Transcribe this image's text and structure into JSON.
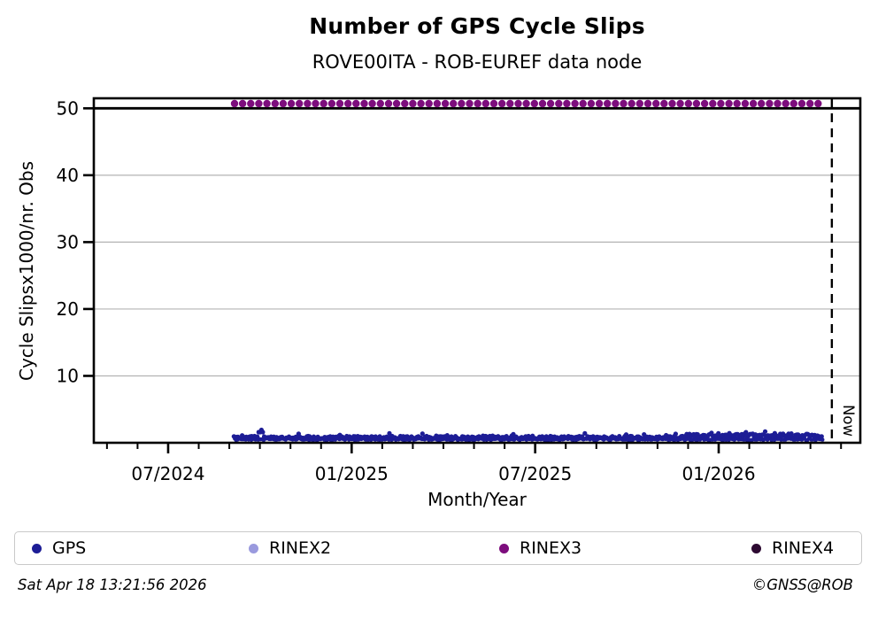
{
  "chart_data": {
    "type": "scatter",
    "title": "Number of GPS Cycle Slips",
    "subtitle": "ROVE00ITA - ROB-EUREF data node",
    "xlabel": "Month/Year",
    "ylabel": "Cycle Slipsx1000/nr. Obs",
    "x_axis": {
      "unit": "months relative to 2024-07",
      "domain": [
        -2.43,
        22.63
      ],
      "major_ticks": [
        {
          "m": 0,
          "label": "07/2024"
        },
        {
          "m": 6,
          "label": "01/2025"
        },
        {
          "m": 12,
          "label": "07/2025"
        },
        {
          "m": 18,
          "label": "01/2026"
        }
      ],
      "minor_tick_step_months": 1,
      "grid": false
    },
    "y_axis": {
      "domain": [
        0,
        51.5
      ],
      "ticks": [
        10,
        20,
        30,
        40,
        50
      ],
      "gridlines": [
        10,
        20,
        30,
        40
      ],
      "top_rule_value": 50,
      "grid": true
    },
    "series": [
      {
        "name": "GPS",
        "color": "#1d1d96",
        "kind": "noisy_band",
        "start": 2.15,
        "end": 21.41,
        "base": 0.55,
        "noise": 0.45,
        "extra_bump_prob": 0.08,
        "extra_bump": 0.45,
        "late": {
          "from": 16.9,
          "add": 0.3
        },
        "spike": {
          "m": 3.04,
          "add": 1.25,
          "sigma": 0.09
        },
        "dot_r": 2.6,
        "step": 0.045,
        "seed": 42,
        "summary": "noisy band of values ~0.4-1.5 cycle slips x1000/nr.obs from mid-Sep 2024 to mid-Apr 2026, brief spike to ~2.2 in early Oct 2024, slightly elevated (~1-1.7) after Dec 2025"
      },
      {
        "name": "RINEX2",
        "color": "#9a9ade",
        "kind": "none",
        "summary": "no visible data"
      },
      {
        "name": "RINEX3",
        "color": "#7d0d7d",
        "kind": "dot_line",
        "start": 2.17,
        "end": 21.47,
        "value": 50.7,
        "dot_r": 4.2,
        "step": 0.265,
        "summary": "constant dotted line at ~50.7 (clipped at top rule y=50) from mid-Sep 2024 to mid-Apr 2026"
      },
      {
        "name": "RINEX4",
        "color": "#2d0a32",
        "kind": "none",
        "summary": "no visible data"
      }
    ],
    "now_marker": {
      "m": 21.7,
      "label": "Now",
      "style": "dashed-vertical-line"
    },
    "legend_position": "bottom-expanded-4col"
  },
  "legend": {
    "items": [
      {
        "label": "GPS",
        "color": "#1d1d96"
      },
      {
        "label": "RINEX2",
        "color": "#9a9ade"
      },
      {
        "label": "RINEX3",
        "color": "#7d0d7d"
      },
      {
        "label": "RINEX4",
        "color": "#2d0a32"
      }
    ]
  },
  "footer": {
    "timestamp": "Sat Apr 18 13:21:56 2026",
    "credit": "©GNSS@ROB"
  }
}
